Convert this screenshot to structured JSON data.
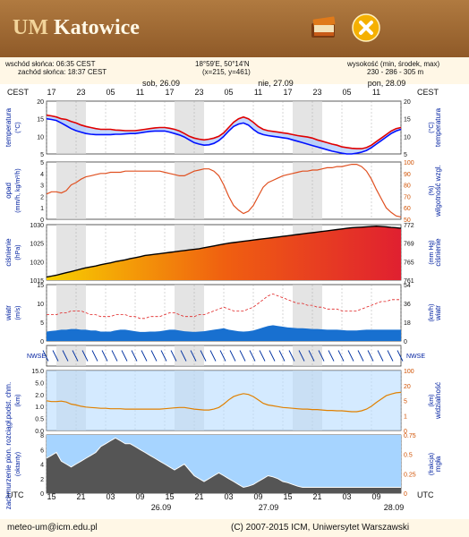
{
  "header": {
    "title_um": "UM",
    "title_city": "Katowice",
    "book_icon": "book-icon",
    "close_icon": "close-icon",
    "brand_color": "#9a6530",
    "close_color": "#f5b000"
  },
  "info": {
    "sunrise": "wschód słońca: 06:35 CEST",
    "sunset": "zachód słońca: 18:37 CEST",
    "coords": "18°59'E, 50°14'N",
    "grid": "(x=215, y=461)",
    "height_label": "wysokość (min, środek, max)",
    "height_values": "230 - 286 - 305 m"
  },
  "timeline": {
    "tz_left": "CEST",
    "tz_right": "CEST",
    "top_hours": [
      "17",
      "23",
      "05",
      "11",
      "17",
      "23",
      "05",
      "11",
      "17",
      "23",
      "05",
      "11"
    ],
    "dates_top": [
      "sob, 26.09",
      "nie, 27.09",
      "pon, 28.09"
    ],
    "utc_left": "UTC",
    "utc_right": "UTC",
    "bottom_hours": [
      "15",
      "21",
      "03",
      "09",
      "15",
      "21",
      "03",
      "09",
      "15",
      "21",
      "03",
      "09"
    ],
    "dates_bottom": [
      "26.09",
      "27.09",
      "28.09"
    ]
  },
  "panels": {
    "temp": {
      "ylabel": "temperatura",
      "unit_left": "(°C)",
      "ylabel_right": "temperatura",
      "unit_right": "(°C)",
      "ticks_left": [
        "20",
        "15",
        "10",
        "5"
      ],
      "ticks_right": [
        "20",
        "15",
        "10",
        "5"
      ]
    },
    "precip": {
      "ylabel": "opad",
      "unit_left": "(mm/h, kg/m²/h)",
      "ylabel_right": "wilgotność wzgl.",
      "unit_right": "(%)",
      "ticks_left": [
        "5",
        "4",
        "3",
        "2",
        "1",
        "0"
      ],
      "ticks_right": [
        "100",
        "90",
        "80",
        "70",
        "60",
        "50"
      ]
    },
    "pressure": {
      "ylabel": "ciśnienie",
      "unit_left": "(hPa)",
      "ylabel_right": "ciśnienie",
      "unit_right": "(mm Hg)",
      "ticks_left": [
        "1030",
        "1025",
        "1020",
        "1015"
      ],
      "ticks_right": [
        "772",
        "769",
        "765",
        "761"
      ]
    },
    "wind": {
      "ylabel": "wiatr",
      "unit_left": "(m/s)",
      "ylabel_right": "wiatr",
      "unit_right": "(km/h)",
      "ticks_left": [
        "15",
        "10",
        "5",
        "0"
      ],
      "ticks_right": [
        "54",
        "36",
        "18",
        "0"
      ]
    },
    "winddir": {
      "label_left": "NWSE",
      "label_right": "NWSE"
    },
    "cloud": {
      "ylabel": "podst. chm.",
      "unit_left": "(km)",
      "ylabel_right": "widzialność",
      "unit_right": "(km)",
      "ticks_left": [
        "15.0",
        "5.0",
        "2.0",
        "1.0",
        "0.5",
        "0.0"
      ],
      "ticks_right": [
        "100",
        "20",
        "5",
        "1",
        "0"
      ]
    },
    "fog": {
      "ylabel": "zachmurzenie pion. rozciągł.",
      "unit_left": "(oktanty)",
      "ylabel_right": "mgła",
      "unit_right": "(frakcja)",
      "ticks_left": [
        "8",
        "6",
        "4",
        "2",
        "0"
      ],
      "ticks_right": [
        "0.75",
        "0.5",
        "0.25",
        "0"
      ]
    }
  },
  "chart_data": {
    "type": "line",
    "title": "",
    "x": [
      0,
      1,
      2,
      3,
      4,
      5,
      6,
      7,
      8,
      9,
      10,
      11,
      12,
      13,
      14,
      15,
      16,
      17,
      18,
      19,
      20,
      21,
      22,
      23,
      24,
      25,
      26,
      27,
      28,
      29,
      30,
      31,
      32,
      33,
      34,
      35,
      36,
      37,
      38,
      39,
      40,
      41,
      42,
      43,
      44,
      45,
      46,
      47,
      48,
      49,
      50,
      51,
      52,
      53,
      54,
      55,
      56,
      57,
      58,
      59,
      60,
      61,
      62,
      63,
      64,
      65,
      66,
      67,
      68,
      69,
      70,
      71,
      72
    ],
    "series": [
      {
        "name": "temp_max",
        "color": "#e00000",
        "values": [
          16,
          15.8,
          15.5,
          15,
          14.8,
          14.2,
          13.8,
          13.2,
          12.8,
          12.5,
          12.2,
          12.0,
          12.0,
          12.0,
          11.8,
          11.7,
          11.6,
          11.6,
          11.6,
          11.8,
          12.0,
          12.2,
          12.4,
          12.5,
          12.5,
          12.3,
          12.0,
          11.5,
          10.8,
          10.0,
          9.5,
          9.2,
          9.0,
          9.2,
          9.5,
          10.0,
          11.0,
          12.5,
          14.0,
          15.0,
          15.5,
          15.0,
          14.0,
          12.8,
          12.0,
          11.6,
          11.4,
          11.2,
          11.0,
          10.8,
          10.5,
          10.2,
          10.0,
          9.8,
          9.5,
          9.0,
          8.6,
          8.2,
          7.8,
          7.5,
          7.0,
          6.8,
          6.6,
          6.5,
          6.5,
          6.8,
          7.5,
          8.5,
          9.5,
          10.5,
          11.5,
          12.2,
          12.5
        ]
      },
      {
        "name": "temp_min",
        "color": "#0010ff",
        "values": [
          15,
          14.8,
          14.5,
          13.8,
          13.0,
          12.2,
          11.6,
          11.2,
          10.8,
          10.6,
          10.5,
          10.5,
          10.5,
          10.5,
          10.6,
          10.6,
          10.7,
          10.8,
          10.8,
          11.0,
          11.2,
          11.4,
          11.5,
          11.5,
          11.5,
          11.2,
          10.8,
          10.4,
          9.8,
          9.0,
          8.2,
          7.8,
          7.5,
          7.6,
          8.0,
          8.8,
          10.0,
          11.5,
          12.8,
          13.5,
          13.8,
          13.2,
          12.0,
          11.0,
          10.5,
          10.2,
          10.0,
          9.8,
          9.6,
          9.4,
          9.0,
          8.6,
          8.2,
          7.8,
          7.4,
          7.0,
          6.6,
          6.2,
          5.8,
          5.5,
          5.2,
          5.0,
          5.0,
          5.2,
          5.5,
          6.0,
          6.8,
          7.8,
          8.8,
          9.8,
          10.8,
          11.5,
          12.0
        ]
      },
      {
        "name": "humidity",
        "color": "#e05020",
        "values": [
          72,
          74,
          74,
          73,
          75,
          80,
          82,
          85,
          87,
          88,
          89,
          90,
          90,
          91,
          91,
          91,
          92,
          92,
          92,
          92,
          92,
          92,
          92,
          92,
          91,
          90,
          89,
          88,
          88,
          90,
          92,
          93,
          94,
          94,
          92,
          88,
          80,
          70,
          62,
          58,
          55,
          57,
          62,
          70,
          78,
          82,
          84,
          86,
          88,
          89,
          90,
          91,
          92,
          92,
          93,
          93,
          94,
          95,
          95,
          96,
          96,
          97,
          98,
          98,
          96,
          92,
          85,
          76,
          68,
          60,
          56,
          53,
          52
        ]
      },
      {
        "name": "pressure",
        "color": "#000000",
        "values": [
          1016,
          1016.3,
          1016.6,
          1017,
          1017.4,
          1017.8,
          1018.2,
          1018.6,
          1019,
          1019.3,
          1019.6,
          1020,
          1020.3,
          1020.6,
          1021,
          1021.3,
          1021.6,
          1022,
          1022.3,
          1022.6,
          1023,
          1023.2,
          1023.4,
          1023.6,
          1023.8,
          1024,
          1024.2,
          1024.4,
          1024.6,
          1024.8,
          1025,
          1025.2,
          1025.5,
          1025.8,
          1026.1,
          1026.4,
          1026.7,
          1027,
          1027.2,
          1027.4,
          1027.6,
          1027.8,
          1028,
          1028.2,
          1028.4,
          1028.6,
          1028.8,
          1029,
          1029.2,
          1029.4,
          1029.6,
          1029.8,
          1030,
          1030.2,
          1030.4,
          1030.6,
          1030.8,
          1031,
          1031.2,
          1031.4,
          1031.6,
          1031.8,
          1032,
          1032.1,
          1032.2,
          1032.3,
          1032.4,
          1032.5,
          1032.4,
          1032.3,
          1032.1,
          1032,
          1031.8
        ]
      },
      {
        "name": "wind",
        "color": "#0040c0",
        "values": [
          2.5,
          2.7,
          2.8,
          3.0,
          3.0,
          3.2,
          3.2,
          3.0,
          3.0,
          2.8,
          2.8,
          2.5,
          2.5,
          2.5,
          2.8,
          3.0,
          3.0,
          2.8,
          2.6,
          2.4,
          2.4,
          2.5,
          2.5,
          2.6,
          2.8,
          3.0,
          3.0,
          2.8,
          2.6,
          2.5,
          2.4,
          2.5,
          2.6,
          2.8,
          3.0,
          3.2,
          3.4,
          3.0,
          2.8,
          2.6,
          2.5,
          2.6,
          2.8,
          3.2,
          3.6,
          4.0,
          4.2,
          4.0,
          3.8,
          3.6,
          3.5,
          3.4,
          3.4,
          3.3,
          3.2,
          3.2,
          3.1,
          3.0,
          3.0,
          3.0,
          2.9,
          2.8,
          2.8,
          2.8,
          2.9,
          3.0,
          3.0,
          3.0,
          3.0,
          3.0,
          3.0,
          3.0,
          3.0
        ]
      },
      {
        "name": "gust",
        "color": "#e02020",
        "values": [
          7,
          7,
          7,
          7.5,
          7.5,
          8,
          8,
          8,
          7.5,
          7,
          7,
          6.5,
          6.5,
          6.5,
          7,
          7,
          7,
          6.5,
          6.5,
          6,
          6,
          6.5,
          6.5,
          6.5,
          7,
          7.5,
          7.5,
          7,
          6.5,
          6.5,
          6.5,
          7,
          7,
          7.5,
          8,
          8.5,
          9,
          8.5,
          8,
          8,
          8,
          8.5,
          9,
          10,
          11,
          12,
          12.5,
          12,
          11.5,
          11,
          10.5,
          10,
          10,
          9.5,
          9.5,
          9,
          9,
          8.5,
          8.5,
          8.5,
          8,
          8,
          8,
          8,
          8.5,
          9,
          9.5,
          10,
          10.5,
          10.5,
          11,
          11,
          11
        ]
      },
      {
        "name": "fog",
        "color": "#ffffff",
        "values": [
          0.6,
          0.65,
          0.7,
          0.55,
          0.5,
          0.45,
          0.5,
          0.55,
          0.6,
          0.65,
          0.7,
          0.8,
          0.85,
          0.9,
          0.95,
          0.9,
          0.85,
          0.85,
          0.8,
          0.75,
          0.7,
          0.65,
          0.6,
          0.55,
          0.5,
          0.45,
          0.4,
          0.45,
          0.5,
          0.4,
          0.3,
          0.25,
          0.2,
          0.25,
          0.3,
          0.35,
          0.3,
          0.25,
          0.2,
          0.15,
          0.1,
          0.12,
          0.15,
          0.2,
          0.25,
          0.3,
          0.28,
          0.25,
          0.2,
          0.18,
          0.15,
          0.12,
          0.1,
          0.1,
          0.1,
          0.1,
          0.1,
          0.1,
          0.1,
          0.1,
          0.1,
          0.1,
          0.1,
          0.1,
          0.1,
          0.1,
          0.1,
          0.1,
          0.1,
          0.1,
          0.1,
          0.1,
          0.1
        ]
      }
    ],
    "ylim": [
      5,
      20
    ],
    "grid": true
  },
  "footer": {
    "email": "meteo-um@icm.edu.pl",
    "copyright": "(C) 2007-2015 ICM, Uniwersytet Warszawski"
  }
}
